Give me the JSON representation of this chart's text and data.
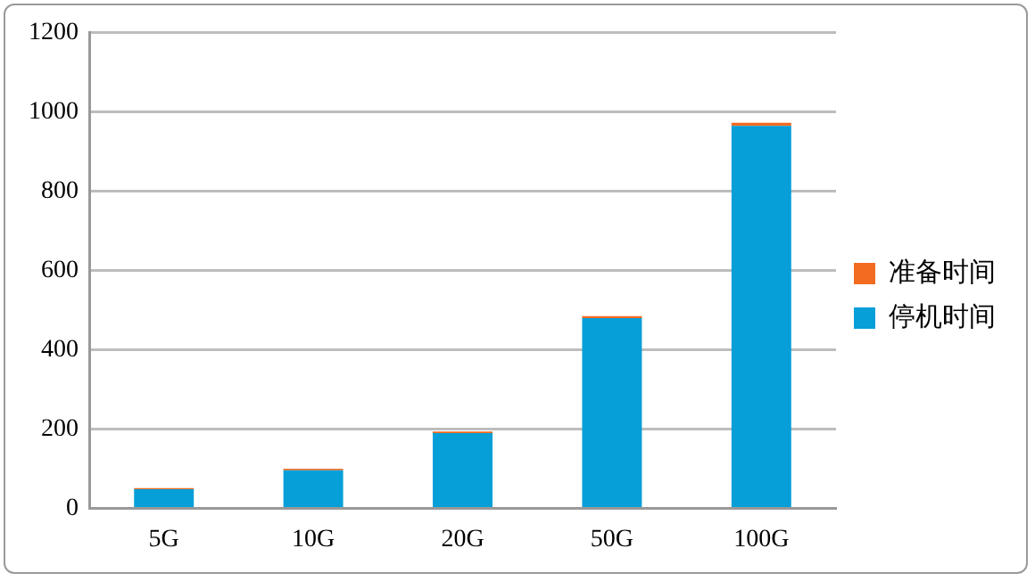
{
  "chart_data": {
    "type": "bar",
    "stacked": true,
    "categories": [
      "5G",
      "10G",
      "20G",
      "50G",
      "100G"
    ],
    "series": [
      {
        "name": "停机时间",
        "color": "#069fd8",
        "values": [
          48,
          96,
          190,
          480,
          965
        ]
      },
      {
        "name": "准备时间",
        "color": "#f26b21",
        "values": [
          3,
          4,
          4,
          5,
          8
        ]
      }
    ],
    "ylim": [
      0,
      1200
    ],
    "yticks": [
      0,
      200,
      400,
      600,
      800,
      1000,
      1200
    ],
    "grid": "y",
    "legend": "right"
  }
}
